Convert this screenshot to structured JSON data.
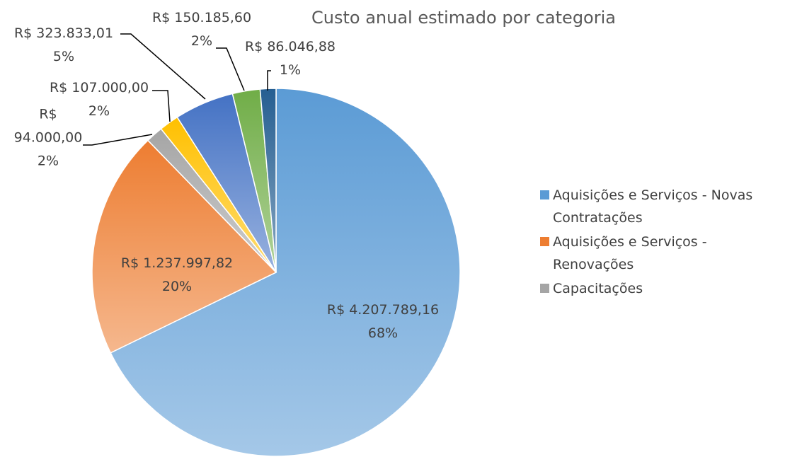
{
  "chart_data": {
    "type": "pie",
    "title": "Custo anual estimado por categoria",
    "categories": [
      "Aquisições e Serviços - Novas Contratações",
      "Aquisições e Serviços - Renovações",
      "Capacitações",
      null,
      null,
      null,
      null
    ],
    "values": [
      4207789.16,
      1237997.82,
      94000.0,
      107000.0,
      323833.01,
      150185.6,
      86046.88
    ],
    "value_labels": [
      "R$ 4.207.789,16",
      "R$ 1.237.997,82",
      "R$ 94.000,00",
      "R$ 107.000,00",
      "R$ 323.833,01",
      "R$ 150.185,60",
      "R$ 86.046,88"
    ],
    "percent_labels": [
      "68%",
      "20%",
      "2%",
      "2%",
      "5%",
      "2%",
      "1%"
    ],
    "colors": [
      "#5b9bd5",
      "#ed7d31",
      "#a5a5a5",
      "#ffc000",
      "#4472c4",
      "#70ad47",
      "#255e91"
    ],
    "legend": "right"
  }
}
